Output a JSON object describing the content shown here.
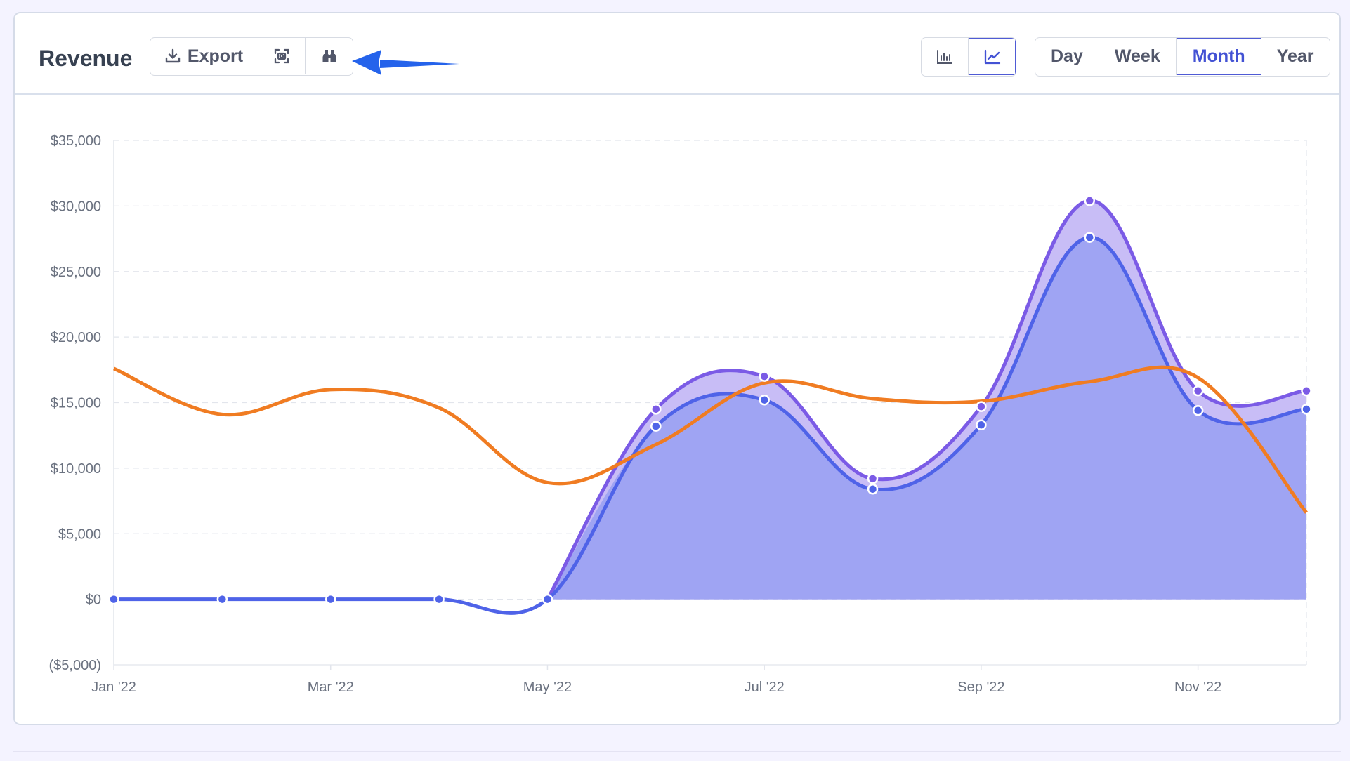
{
  "header": {
    "title": "Revenue",
    "export_label": "Export",
    "tools": [
      {
        "icon": "download-icon"
      },
      {
        "icon": "screenshot-icon"
      },
      {
        "icon": "binoculars-icon"
      }
    ],
    "view_switch": [
      {
        "icon": "bar-chart-icon",
        "active": false
      },
      {
        "icon": "line-chart-icon",
        "active": true
      }
    ],
    "periods": [
      {
        "label": "Day",
        "active": false
      },
      {
        "label": "Week",
        "active": false
      },
      {
        "label": "Month",
        "active": true
      },
      {
        "label": "Year",
        "active": false
      }
    ],
    "annotation_arrow_color": "#2563eb"
  },
  "colors": {
    "accent": "#4352d4",
    "series_total": "#7b5be6",
    "series_total_fill": "#c8bdf6",
    "series_base": "#4f63e8",
    "series_base_fill": "#9fa4f3",
    "series_orange": "#f07c22",
    "grid": "#e2e5ec"
  },
  "chart_data": {
    "type": "area",
    "x": [
      "Jan '22",
      "Feb '22",
      "Mar '22",
      "Apr '22",
      "May '22",
      "Jun '22",
      "Jul '22",
      "Aug '22",
      "Sep '22",
      "Oct '22",
      "Nov '22",
      "Dec '22"
    ],
    "x_tick_labels": [
      "Jan '22",
      "Mar '22",
      "May '22",
      "Jul '22",
      "Sep '22",
      "Nov '22"
    ],
    "y_tick_labels": [
      "$35,000",
      "$30,000",
      "$25,000",
      "$20,000",
      "$15,000",
      "$10,000",
      "$5,000",
      "$0",
      "($5,000)"
    ],
    "ylim": [
      -5000,
      35000
    ],
    "grid": true,
    "series": [
      {
        "kind": "area",
        "values": [
          0,
          0,
          0,
          0,
          0,
          14500,
          17000,
          9200,
          14700,
          30400,
          15900,
          15900
        ]
      },
      {
        "kind": "area",
        "values": [
          0,
          0,
          0,
          0,
          0,
          13200,
          15200,
          8400,
          13300,
          27600,
          14400,
          14500
        ]
      },
      {
        "kind": "line",
        "values": [
          17600,
          14100,
          16000,
          14600,
          8900,
          11800,
          16500,
          15300,
          15100,
          16600,
          16900,
          6600
        ]
      }
    ]
  }
}
